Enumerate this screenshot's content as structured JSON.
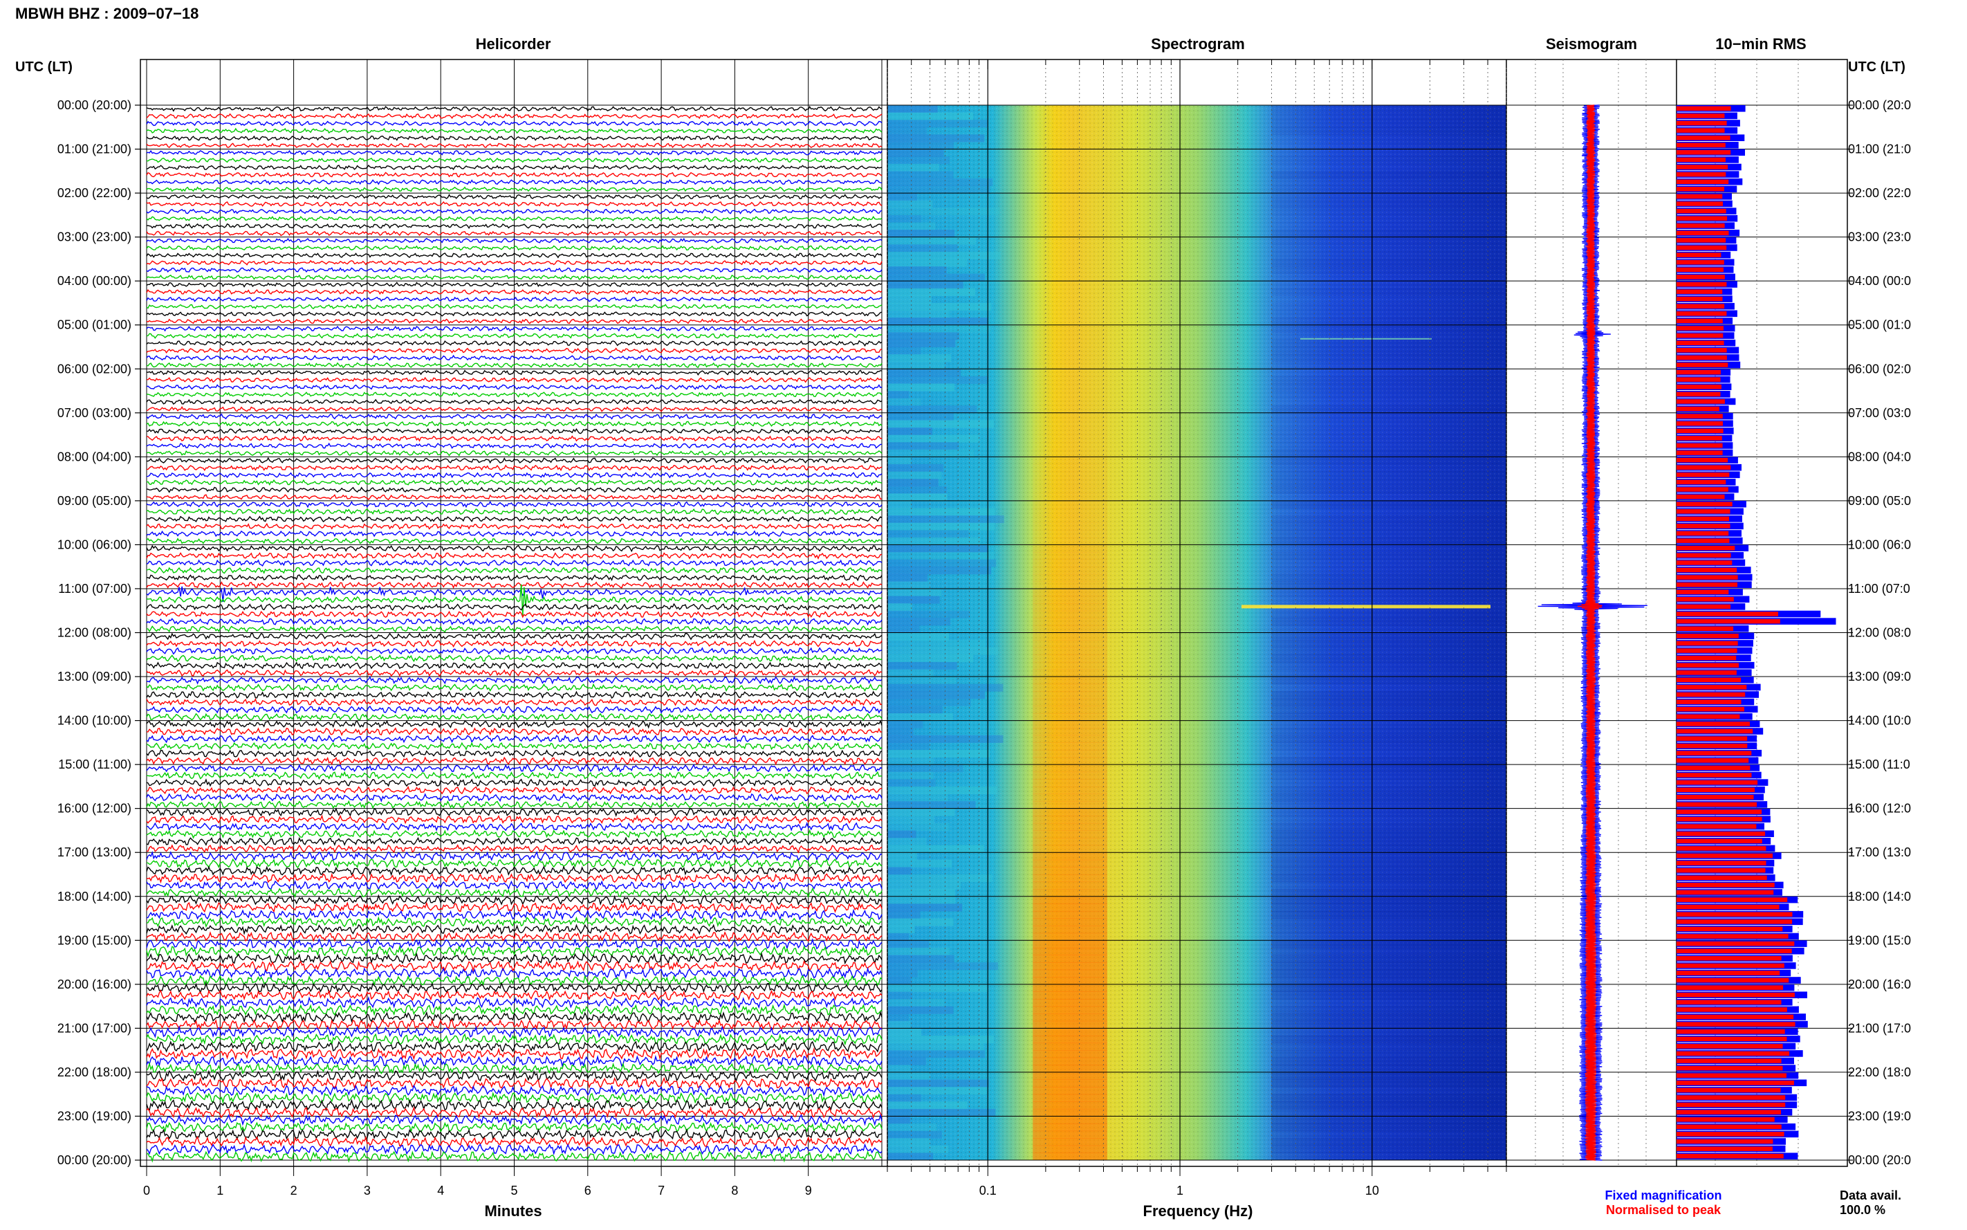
{
  "header": {
    "station_title": "MBWH BHZ : 2009−07−18"
  },
  "panels": {
    "helicorder": "Helicorder",
    "spectrogram": "Spectrogram",
    "seismogram": "Seismogram",
    "rms": "10−min RMS"
  },
  "axis_titles": {
    "utc_left": "UTC (LT)",
    "utc_right": "UTC (LT)",
    "minutes": "Minutes",
    "frequency": "Frequency (Hz)"
  },
  "legend": {
    "fixed": "Fixed magnification",
    "fixed_color": "#0000ff",
    "normalised": "Normalised to peak",
    "normalised_color": "#ff0000",
    "data_avail_label": "Data avail.",
    "data_avail_value": "100.0 %"
  },
  "colors": {
    "trace_cycle": [
      "#000000",
      "#ff0000",
      "#0000ff",
      "#00cc00"
    ],
    "rms_fixed": "#0000ff",
    "rms_normalised": "#ff0000",
    "seismo_fixed": "#0000ff",
    "seismo_normalised": "#ff0000"
  },
  "time_labels_left": [
    "00:00 (20:00)",
    "01:00 (21:00)",
    "02:00 (22:00)",
    "03:00 (23:00)",
    "04:00 (00:00)",
    "05:00 (01:00)",
    "06:00 (02:00)",
    "07:00 (03:00)",
    "08:00 (04:00)",
    "09:00 (05:00)",
    "10:00 (06:00)",
    "11:00 (07:00)",
    "12:00 (08:00)",
    "13:00 (09:00)",
    "14:00 (10:00)",
    "15:00 (11:00)",
    "16:00 (12:00)",
    "17:00 (13:00)",
    "18:00 (14:00)",
    "19:00 (15:00)",
    "20:00 (16:00)",
    "21:00 (17:00)",
    "22:00 (18:00)",
    "23:00 (19:00)",
    "00:00 (20:00)"
  ],
  "time_labels_right": [
    "00:00 (20:0",
    "01:00 (21:0",
    "02:00 (22:0",
    "03:00 (23:0",
    "04:00 (00:0",
    "05:00 (01:0",
    "06:00 (02:0",
    "07:00 (03:0",
    "08:00 (04:0",
    "09:00 (05:0",
    "10:00 (06:0",
    "11:00 (07:0",
    "12:00 (08:0",
    "13:00 (09:0",
    "14:00 (10:0",
    "15:00 (11:0",
    "16:00 (12:0",
    "17:00 (13:0",
    "18:00 (14:0",
    "19:00 (15:0",
    "20:00 (16:0",
    "21:00 (17:0",
    "22:00 (18:0",
    "23:00 (19:0",
    "00:00 (20:0"
  ],
  "chart_data": {
    "type": "helicorder",
    "helicorder": {
      "xlabel": "Minutes",
      "x_ticks": [
        "0",
        "1",
        "2",
        "3",
        "4",
        "5",
        "6",
        "7",
        "8",
        "9"
      ],
      "xlim": [
        0,
        10
      ],
      "rows": 144,
      "row_minutes": 10,
      "noise_amplitude_by_hour": [
        1,
        1,
        1,
        1,
        1,
        1.05,
        1.05,
        1.1,
        1.15,
        1.2,
        1.3,
        1.4,
        1.4,
        1.5,
        1.55,
        1.6,
        1.7,
        1.9,
        2.1,
        2.2,
        2.2,
        2.3,
        2.3,
        2.2
      ],
      "events": [
        {
          "hour": 5,
          "row": 3,
          "minute": 0.1,
          "amp": 3
        },
        {
          "hour": 5,
          "row": 2,
          "minute": 9.7,
          "amp": 4
        },
        {
          "hour": 11,
          "row": 0,
          "minute": 0.45,
          "amp": 12
        },
        {
          "hour": 11,
          "row": 0,
          "minute": 1.05,
          "amp": 14
        },
        {
          "hour": 11,
          "row": 0,
          "minute": 2.45,
          "amp": 10
        },
        {
          "hour": 11,
          "row": 0,
          "minute": 3.15,
          "amp": 8
        },
        {
          "hour": 11,
          "row": 1,
          "minute": 5.1,
          "amp": 30
        },
        {
          "hour": 11,
          "row": 0,
          "minute": 5.35,
          "amp": 9
        },
        {
          "hour": 11,
          "row": 0,
          "minute": 8.15,
          "amp": 6
        }
      ]
    },
    "spectrogram": {
      "xlabel": "Frequency (Hz)",
      "scale": "log",
      "xlim": [
        0.03,
        50
      ],
      "x_ticks": [
        "0.1",
        "1",
        "10"
      ],
      "peak_band_hz": [
        0.2,
        0.3
      ],
      "colormap": "jet"
    },
    "seismogram": {
      "series": [
        {
          "name": "Fixed magnification",
          "color": "#0000ff"
        },
        {
          "name": "Normalised to peak",
          "color": "#ff0000"
        }
      ],
      "spikes": [
        {
          "hour": 5.2,
          "amp_fixed": 0.2
        },
        {
          "hour": 11.4,
          "amp_fixed": 1.0,
          "amp_normalised": 0.15
        }
      ]
    },
    "rms": {
      "title": "10−min RMS",
      "bins_per_hour": 6,
      "fixed_by_hour": [
        0.38,
        0.38,
        0.35,
        0.34,
        0.34,
        0.36,
        0.33,
        0.33,
        0.36,
        0.4,
        0.42,
        1.0,
        0.45,
        0.48,
        0.5,
        0.52,
        0.55,
        0.6,
        0.7,
        0.72,
        0.73,
        0.74,
        0.72,
        0.68
      ],
      "normalised_by_hour": [
        0.3,
        0.3,
        0.29,
        0.28,
        0.28,
        0.29,
        0.27,
        0.27,
        0.3,
        0.32,
        0.34,
        0.65,
        0.36,
        0.4,
        0.44,
        0.46,
        0.5,
        0.55,
        0.64,
        0.65,
        0.66,
        0.66,
        0.65,
        0.6
      ]
    }
  }
}
